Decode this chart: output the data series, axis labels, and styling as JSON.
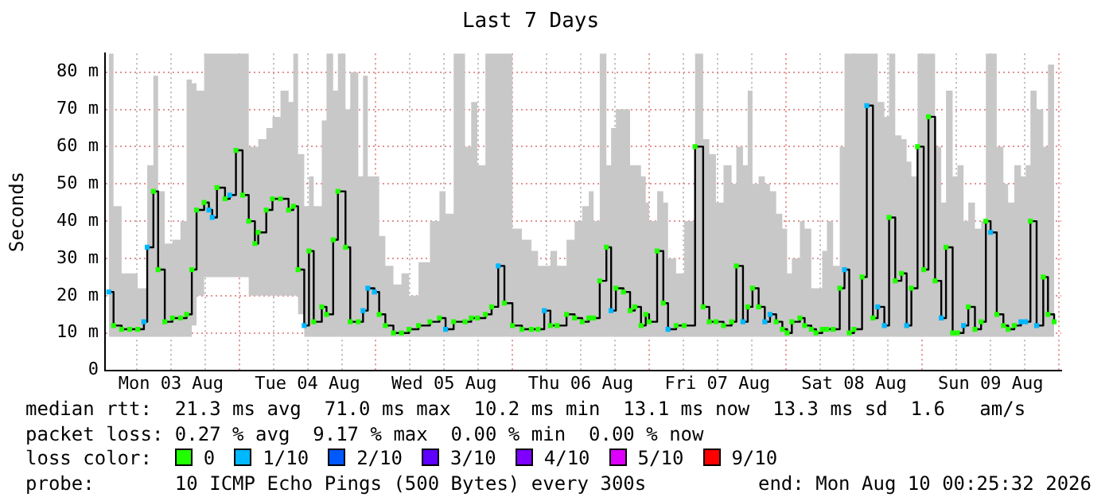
{
  "chart_data": {
    "type": "step",
    "title": "Last 7 Days",
    "ylabel": "Seconds",
    "legend_title": "loss color:",
    "annotations": [
      "median rtt:  21.3 ms avg  71.0 ms max  10.2 ms min  13.1 ms now  13.3 ms sd  1.6   am/s",
      "packet loss: 0.27 % avg  9.17 % max  0.00 % min  0.00 % now",
      "probe:       10 ICMP Echo Pings (500 Bytes) every 300s",
      "end: Mon Aug 10 00:25:32 2026"
    ],
    "xlim": [
      "2026-08-03T00:25",
      "2026-08-10T00:25"
    ],
    "xticks": [
      {
        "value": "2026-08-03T06:00",
        "label": null
      },
      {
        "value": "2026-08-03T12:00",
        "label": "Mon 03 Aug"
      },
      {
        "value": "2026-08-03T18:00",
        "label": null
      },
      {
        "value": "2026-08-04T00:00",
        "label": null
      },
      {
        "value": "2026-08-04T06:00",
        "label": null
      },
      {
        "value": "2026-08-04T12:00",
        "label": "Tue 04 Aug"
      },
      {
        "value": "2026-08-04T18:00",
        "label": null
      },
      {
        "value": "2026-08-05T00:00",
        "label": null
      },
      {
        "value": "2026-08-05T06:00",
        "label": null
      },
      {
        "value": "2026-08-05T12:00",
        "label": "Wed 05 Aug"
      },
      {
        "value": "2026-08-05T18:00",
        "label": null
      },
      {
        "value": "2026-08-06T00:00",
        "label": null
      },
      {
        "value": "2026-08-06T06:00",
        "label": null
      },
      {
        "value": "2026-08-06T12:00",
        "label": "Thu 06 Aug"
      },
      {
        "value": "2026-08-06T18:00",
        "label": null
      },
      {
        "value": "2026-08-07T00:00",
        "label": null
      },
      {
        "value": "2026-08-07T06:00",
        "label": null
      },
      {
        "value": "2026-08-07T12:00",
        "label": "Fri 07 Aug"
      },
      {
        "value": "2026-08-07T18:00",
        "label": null
      },
      {
        "value": "2026-08-08T00:00",
        "label": null
      },
      {
        "value": "2026-08-08T06:00",
        "label": null
      },
      {
        "value": "2026-08-08T12:00",
        "label": "Sat 08 Aug"
      },
      {
        "value": "2026-08-08T18:00",
        "label": null
      },
      {
        "value": "2026-08-09T00:00",
        "label": null
      },
      {
        "value": "2026-08-09T06:00",
        "label": null
      },
      {
        "value": "2026-08-09T12:00",
        "label": "Sun 09 Aug"
      },
      {
        "value": "2026-08-09T18:00",
        "label": null
      },
      {
        "value": "2026-08-10T00:00",
        "label": null
      }
    ],
    "ylim": [
      0,
      85
    ],
    "yticks": [
      0,
      {
        "value": 10,
        "label": "10 m"
      },
      {
        "value": 20,
        "label": "20 m"
      },
      {
        "value": 30,
        "label": "30 m"
      },
      {
        "value": 40,
        "label": "40 m"
      },
      {
        "value": 50,
        "label": "50 m"
      },
      {
        "value": 60,
        "label": "60 m"
      },
      {
        "value": 70,
        "label": "70 m"
      },
      {
        "value": 80,
        "label": "80 m"
      }
    ],
    "grid": true,
    "legend": "bottom",
    "series": [
      {
        "color": "#000000",
        "x": [
          "2026-08-03T01:05",
          "2026-08-03T01:55",
          "2026-08-03T03:20",
          "2026-08-03T04:45",
          "2026-08-03T06:10",
          "2026-08-03T07:15",
          "2026-08-03T07:50",
          "2026-08-03T08:55",
          "2026-08-03T09:45",
          "2026-08-03T10:55",
          "2026-08-03T12:15",
          "2026-08-03T13:40",
          "2026-08-03T14:45",
          "2026-08-03T15:40",
          "2026-08-03T16:30",
          "2026-08-03T17:50",
          "2026-08-03T18:40",
          "2026-08-03T19:15",
          "2026-08-03T20:05",
          "2026-08-03T21:30",
          "2026-08-03T22:20",
          "2026-08-03T23:25",
          "2026-08-04T00:35",
          "2026-08-04T01:40",
          "2026-08-04T02:45",
          "2026-08-04T03:20",
          "2026-08-04T04:45",
          "2026-08-04T05:50",
          "2026-08-04T07:15",
          "2026-08-04T08:40",
          "2026-08-04T09:30",
          "2026-08-04T10:20",
          "2026-08-04T11:25",
          "2026-08-04T12:15",
          "2026-08-04T13:05",
          "2026-08-04T14:30",
          "2026-08-04T15:20",
          "2026-08-04T16:30",
          "2026-08-04T17:20",
          "2026-08-04T18:40",
          "2026-08-04T19:30",
          "2026-08-04T20:55",
          "2026-08-04T21:45",
          "2026-08-04T22:35",
          "2026-08-04T23:45",
          "2026-08-05T00:35",
          "2026-08-05T01:40",
          "2026-08-05T03:05",
          "2026-08-05T04:30",
          "2026-08-05T05:50",
          "2026-08-05T07:30",
          "2026-08-05T09:30",
          "2026-08-05T11:10",
          "2026-08-05T12:15",
          "2026-08-05T13:40",
          "2026-08-05T15:40",
          "2026-08-05T16:45",
          "2026-08-05T17:50",
          "2026-08-05T19:15",
          "2026-08-05T20:20",
          "2026-08-05T21:30",
          "2026-08-05T22:35",
          "2026-08-06T00:00",
          "2026-08-06T01:40",
          "2026-08-06T03:20",
          "2026-08-06T04:30",
          "2026-08-06T05:35",
          "2026-08-06T06:40",
          "2026-08-06T07:50",
          "2026-08-06T09:30",
          "2026-08-06T10:55",
          "2026-08-06T12:15",
          "2026-08-06T13:25",
          "2026-08-06T14:15",
          "2026-08-06T15:20",
          "2026-08-06T16:30",
          "2026-08-06T17:20",
          "2026-08-06T18:10",
          "2026-08-06T19:30",
          "2026-08-06T20:40",
          "2026-08-06T21:30",
          "2026-08-06T22:35",
          "2026-08-06T23:25",
          "2026-08-07T00:00",
          "2026-08-07T01:25",
          "2026-08-07T02:30",
          "2026-08-07T03:20",
          "2026-08-07T04:45",
          "2026-08-07T06:10",
          "2026-08-07T08:05",
          "2026-08-07T09:30",
          "2026-08-07T10:35",
          "2026-08-07T11:45",
          "2026-08-07T13:05",
          "2026-08-07T14:30",
          "2026-08-07T15:20",
          "2026-08-07T16:30",
          "2026-08-07T17:20",
          "2026-08-07T18:10",
          "2026-08-07T19:15",
          "2026-08-07T20:20",
          "2026-08-07T21:15",
          "2026-08-07T22:20",
          "2026-08-07T23:25",
          "2026-08-08T00:15",
          "2026-08-08T01:05",
          "2026-08-08T02:30",
          "2026-08-08T03:20",
          "2026-08-08T04:30",
          "2026-08-08T05:20",
          "2026-08-08T06:25",
          "2026-08-08T07:15",
          "2026-08-08T08:20",
          "2026-08-08T09:30",
          "2026-08-08T10:20",
          "2026-08-08T11:10",
          "2026-08-08T12:00",
          "2026-08-08T13:25",
          "2026-08-08T14:15",
          "2026-08-08T15:20",
          "2026-08-08T16:10",
          "2026-08-08T17:20",
          "2026-08-08T18:10",
          "2026-08-08T19:15",
          "2026-08-08T20:20",
          "2026-08-08T21:15",
          "2026-08-08T22:05",
          "2026-08-08T23:10",
          "2026-08-09T00:15",
          "2026-08-09T01:05",
          "2026-08-09T02:15",
          "2026-08-09T03:20",
          "2026-08-09T04:10",
          "2026-08-09T05:20",
          "2026-08-09T06:10",
          "2026-08-09T07:15",
          "2026-08-09T08:05",
          "2026-08-09T09:15",
          "2026-08-09T10:20",
          "2026-08-09T11:10",
          "2026-08-09T12:00",
          "2026-08-09T13:05",
          "2026-08-09T14:15",
          "2026-08-09T15:05",
          "2026-08-09T16:10",
          "2026-08-09T17:20",
          "2026-08-09T18:10",
          "2026-08-09T19:00",
          "2026-08-09T20:05",
          "2026-08-09T21:15",
          "2026-08-09T22:05",
          "2026-08-09T23:10"
        ],
        "values": [
          21,
          12,
          11,
          11,
          11,
          13,
          33,
          48,
          27,
          13,
          14,
          14,
          15,
          27,
          43,
          45,
          43,
          41,
          49,
          46,
          47,
          59,
          47,
          40,
          34,
          37,
          43,
          46,
          46,
          43,
          44,
          27,
          12,
          32,
          13,
          17,
          15,
          35,
          48,
          33,
          13,
          13,
          16,
          22,
          21,
          15,
          12,
          10,
          10,
          11,
          12,
          13,
          14,
          11,
          13,
          13,
          14,
          14,
          15,
          17,
          28,
          18,
          12,
          11,
          11,
          11,
          16,
          12,
          12,
          15,
          14,
          13,
          14,
          14,
          24,
          33,
          16,
          22,
          21,
          16,
          17,
          12,
          15,
          13,
          32,
          18,
          11,
          12,
          12,
          60,
          17,
          13,
          13,
          12,
          13,
          28,
          13,
          17,
          22,
          17,
          13,
          15,
          13,
          11,
          10,
          13,
          14,
          12,
          11,
          10,
          11,
          11,
          11,
          22,
          27,
          10,
          11,
          25,
          71,
          14,
          17,
          12,
          41,
          24,
          26,
          12,
          22,
          60,
          27,
          68,
          24,
          14,
          33,
          10,
          10,
          12,
          17,
          11,
          13,
          40,
          37,
          15,
          12,
          11,
          12,
          13,
          13,
          40,
          12,
          25,
          15,
          13
        ],
        "lower": [
          9,
          9,
          9,
          9,
          9,
          9,
          9,
          9,
          9,
          9,
          9,
          9,
          9,
          12,
          20,
          25,
          25,
          25,
          25,
          25,
          25,
          25,
          25,
          20,
          20,
          20,
          20,
          20,
          20,
          20,
          20,
          15,
          9,
          9,
          9,
          9,
          9,
          9,
          9,
          9,
          9,
          9,
          9,
          9,
          9,
          9,
          9,
          9,
          9,
          9,
          9,
          9,
          9,
          9,
          9,
          9,
          9,
          9,
          9,
          9,
          9,
          9,
          9,
          9,
          9,
          9,
          9,
          9,
          9,
          9,
          9,
          9,
          9,
          9,
          9,
          9,
          9,
          9,
          9,
          9,
          9,
          9,
          9,
          9,
          9,
          9,
          9,
          9,
          9,
          9,
          9,
          9,
          9,
          9,
          9,
          9,
          9,
          9,
          9,
          9,
          9,
          9,
          9,
          9,
          9,
          9,
          9,
          9,
          9,
          9,
          9,
          9,
          9,
          9,
          9,
          9,
          9,
          9,
          9,
          9,
          9,
          9,
          9,
          9,
          9,
          9,
          9,
          9,
          9,
          9,
          9,
          9,
          9,
          9,
          9,
          9,
          9,
          9,
          9,
          9,
          9,
          9,
          9,
          9,
          9,
          9,
          9,
          9,
          9,
          9,
          9,
          9
        ],
        "upper": [
          85,
          44,
          26,
          26,
          22,
          22,
          55,
          79,
          48,
          34,
          35,
          40,
          78,
          77,
          75,
          85,
          85,
          85,
          85,
          85,
          85,
          85,
          85,
          60,
          60,
          62,
          65,
          68,
          75,
          72,
          85,
          58,
          44,
          52,
          44,
          67,
          85,
          75,
          85,
          70,
          80,
          52,
          79,
          52,
          52,
          36,
          28,
          23,
          26,
          20,
          29,
          40,
          48,
          42,
          85,
          60,
          72,
          55,
          85,
          85,
          85,
          85,
          38,
          35,
          32,
          28,
          28,
          32,
          28,
          35,
          40,
          44,
          48,
          40,
          85,
          55,
          65,
          70,
          70,
          55,
          55,
          52,
          45,
          40,
          48,
          45,
          30,
          26,
          40,
          85,
          62,
          58,
          45,
          55,
          50,
          60,
          55,
          75,
          50,
          52,
          50,
          48,
          42,
          38,
          26,
          30,
          40,
          38,
          22,
          22,
          32,
          40,
          28,
          60,
          85,
          85,
          85,
          85,
          85,
          85,
          72,
          68,
          85,
          63,
          62,
          56,
          52,
          85,
          85,
          85,
          60,
          45,
          75,
          52,
          55,
          40,
          45,
          38,
          40,
          85,
          85,
          60,
          50,
          45,
          55,
          52,
          55,
          75,
          70,
          60,
          82,
          80
        ]
      },
      {
        "type": "scatter",
        "name": "0",
        "color": "#20ff00",
        "marker": "square",
        "x": [
          "2026-08-03T01:55",
          "2026-08-03T03:20",
          "2026-08-03T04:45",
          "2026-08-03T06:10",
          "2026-08-03T08:55",
          "2026-08-03T09:45",
          "2026-08-03T10:55",
          "2026-08-03T12:15",
          "2026-08-03T13:40",
          "2026-08-03T14:45",
          "2026-08-03T15:40",
          "2026-08-03T16:30",
          "2026-08-03T17:50",
          "2026-08-03T20:05",
          "2026-08-03T21:30",
          "2026-08-03T23:25",
          "2026-08-04T00:35",
          "2026-08-04T01:40",
          "2026-08-04T02:45",
          "2026-08-04T03:20",
          "2026-08-04T04:45",
          "2026-08-04T05:50",
          "2026-08-04T07:15",
          "2026-08-04T08:40",
          "2026-08-04T09:30",
          "2026-08-04T10:20",
          "2026-08-04T12:15",
          "2026-08-04T13:05",
          "2026-08-04T14:30",
          "2026-08-04T15:20",
          "2026-08-04T16:30",
          "2026-08-04T17:20",
          "2026-08-04T18:40",
          "2026-08-04T19:30",
          "2026-08-04T20:55",
          "2026-08-05T00:35",
          "2026-08-05T01:40",
          "2026-08-05T03:05",
          "2026-08-05T04:30",
          "2026-08-05T05:50",
          "2026-08-05T07:30",
          "2026-08-05T09:30",
          "2026-08-05T11:10",
          "2026-08-05T13:40",
          "2026-08-05T15:40",
          "2026-08-05T16:45",
          "2026-08-05T17:50",
          "2026-08-05T19:15",
          "2026-08-05T20:20",
          "2026-08-05T22:35",
          "2026-08-06T00:00",
          "2026-08-06T01:40",
          "2026-08-06T03:20",
          "2026-08-06T04:30",
          "2026-08-06T06:40",
          "2026-08-06T07:50",
          "2026-08-06T09:30",
          "2026-08-06T10:55",
          "2026-08-06T12:15",
          "2026-08-06T13:25",
          "2026-08-06T14:15",
          "2026-08-06T15:20",
          "2026-08-06T16:30",
          "2026-08-06T18:10",
          "2026-08-06T19:30",
          "2026-08-06T20:40",
          "2026-08-06T21:30",
          "2026-08-06T22:35",
          "2026-08-06T23:25",
          "2026-08-07T00:00",
          "2026-08-07T01:25",
          "2026-08-07T02:30",
          "2026-08-07T04:45",
          "2026-08-07T06:10",
          "2026-08-07T08:05",
          "2026-08-07T09:30",
          "2026-08-07T10:35",
          "2026-08-07T11:45",
          "2026-08-07T13:05",
          "2026-08-07T14:30",
          "2026-08-07T15:20",
          "2026-08-07T17:20",
          "2026-08-07T18:10",
          "2026-08-07T19:15",
          "2026-08-07T22:20",
          "2026-08-07T23:25",
          "2026-08-08T00:15",
          "2026-08-08T01:05",
          "2026-08-08T02:30",
          "2026-08-08T03:20",
          "2026-08-08T04:30",
          "2026-08-08T05:20",
          "2026-08-08T06:25",
          "2026-08-08T07:15",
          "2026-08-08T08:20",
          "2026-08-08T09:30",
          "2026-08-08T11:10",
          "2026-08-08T12:00",
          "2026-08-08T13:25",
          "2026-08-08T15:20",
          "2026-08-08T18:10",
          "2026-08-08T19:15",
          "2026-08-08T20:20",
          "2026-08-08T22:05",
          "2026-08-08T23:10",
          "2026-08-09T00:15",
          "2026-08-09T01:05",
          "2026-08-09T02:15",
          "2026-08-09T04:10",
          "2026-08-09T05:20",
          "2026-08-09T06:10",
          "2026-08-09T08:05",
          "2026-08-09T09:15",
          "2026-08-09T10:20",
          "2026-08-09T11:10",
          "2026-08-09T13:05",
          "2026-08-09T14:15",
          "2026-08-09T15:05",
          "2026-08-09T16:10",
          "2026-08-09T19:00",
          "2026-08-09T21:15",
          "2026-08-09T22:05",
          "2026-08-09T23:10"
        ],
        "values": [
          12,
          11,
          11,
          11,
          48,
          27,
          13,
          14,
          14,
          15,
          27,
          43,
          45,
          49,
          46,
          59,
          47,
          40,
          34,
          37,
          43,
          46,
          46,
          43,
          44,
          27,
          32,
          13,
          17,
          15,
          35,
          48,
          33,
          13,
          13,
          15,
          12,
          10,
          10,
          11,
          12,
          13,
          14,
          13,
          13,
          14,
          14,
          15,
          17,
          18,
          12,
          11,
          11,
          11,
          12,
          12,
          15,
          14,
          13,
          14,
          14,
          24,
          33,
          22,
          21,
          16,
          17,
          12,
          15,
          13,
          32,
          18,
          12,
          12,
          60,
          17,
          13,
          13,
          12,
          13,
          28,
          17,
          22,
          17,
          13,
          11,
          10,
          13,
          14,
          12,
          11,
          10,
          11,
          11,
          11,
          22,
          10,
          11,
          25,
          14,
          41,
          24,
          26,
          22,
          60,
          27,
          68,
          24,
          33,
          10,
          10,
          17,
          11,
          13,
          40,
          15,
          12,
          11,
          12,
          40,
          25,
          15,
          13
        ]
      },
      {
        "type": "scatter",
        "name": "1/10",
        "color": "#00b8ff",
        "marker": "square",
        "x": [
          "2026-08-03T01:05",
          "2026-08-03T07:15",
          "2026-08-03T07:50",
          "2026-08-03T18:40",
          "2026-08-03T19:15",
          "2026-08-03T22:20",
          "2026-08-04T11:25",
          "2026-08-04T21:45",
          "2026-08-04T22:35",
          "2026-08-04T23:45",
          "2026-08-05T12:15",
          "2026-08-05T21:30",
          "2026-08-06T05:35",
          "2026-08-06T17:20",
          "2026-08-07T03:20",
          "2026-08-07T16:30",
          "2026-08-07T20:20",
          "2026-08-07T21:15",
          "2026-08-08T10:20",
          "2026-08-08T14:15",
          "2026-08-08T16:10",
          "2026-08-08T17:20",
          "2026-08-08T21:15",
          "2026-08-09T03:20",
          "2026-08-09T07:15",
          "2026-08-09T12:00",
          "2026-08-09T17:20",
          "2026-08-09T18:10",
          "2026-08-09T20:05"
        ],
        "values": [
          21,
          13,
          33,
          43,
          41,
          47,
          12,
          16,
          22,
          21,
          11,
          28,
          16,
          16,
          11,
          13,
          13,
          15,
          27,
          71,
          17,
          12,
          12,
          14,
          12,
          37,
          13,
          13,
          12
        ]
      },
      {
        "type": "scatter",
        "name": "2/10",
        "color": "#0059ff"
      },
      {
        "type": "scatter",
        "name": "3/10",
        "color": "#5e00ff"
      },
      {
        "type": "scatter",
        "name": "4/10",
        "color": "#7e00ff"
      },
      {
        "type": "scatter",
        "name": "5/10",
        "color": "#dd00ff"
      },
      {
        "type": "scatter",
        "name": "9/10",
        "color": "#ff0000"
      }
    ]
  }
}
